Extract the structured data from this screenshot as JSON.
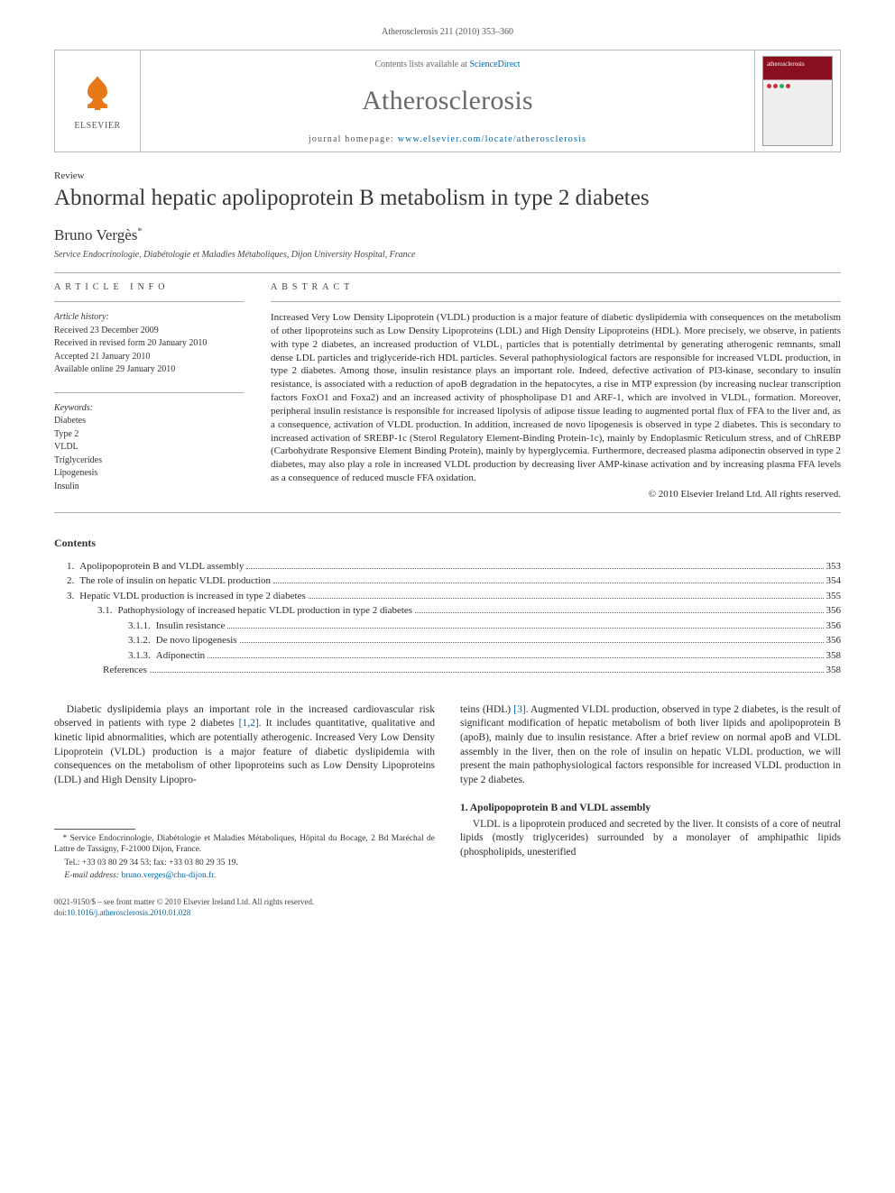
{
  "running_head": "Atherosclerosis 211 (2010) 353–360",
  "header": {
    "publisher": "ELSEVIER",
    "contents_prefix": "Contents lists available at ",
    "contents_link": "ScienceDirect",
    "journal_name": "Atherosclerosis",
    "homepage_prefix": "journal homepage: ",
    "homepage_url": "www.elsevier.com/locate/atherosclerosis",
    "cover_title": "atherosclerosis"
  },
  "article": {
    "type": "Review",
    "title": "Abnormal hepatic apolipoprotein B metabolism in type 2 diabetes",
    "author": "Bruno Vergès",
    "author_marker": "*",
    "affiliation": "Service Endocrinologie, Diabétologie et Maladies Métaboliques, Dijon University Hospital, France"
  },
  "info": {
    "heading": "article info",
    "history_label": "Article history:",
    "history": [
      "Received 23 December 2009",
      "Received in revised form 20 January 2010",
      "Accepted 21 January 2010",
      "Available online 29 January 2010"
    ],
    "keywords_label": "Keywords:",
    "keywords": [
      "Diabetes",
      "Type 2",
      "VLDL",
      "Triglycerides",
      "Lipogenesis",
      "Insulin"
    ]
  },
  "abstract": {
    "heading": "abstract",
    "text": "Increased Very Low Density Lipoprotein (VLDL) production is a major feature of diabetic dyslipidemia with consequences on the metabolism of other lipoproteins such as Low Density Lipoproteins (LDL) and High Density Lipoproteins (HDL). More precisely, we observe, in patients with type 2 diabetes, an increased production of VLDL₁ particles that is potentially detrimental by generating atherogenic remnants, small dense LDL particles and triglyceride-rich HDL particles. Several pathophysiological factors are responsible for increased VLDL production, in type 2 diabetes. Among those, insulin resistance plays an important role. Indeed, defective activation of PI3-kinase, secondary to insulin resistance, is associated with a reduction of apoB degradation in the hepatocytes, a rise in MTP expression (by increasing nuclear transcription factors FoxO1 and Foxa2) and an increased activity of phospholipase D1 and ARF-1, which are involved in VLDL₁ formation. Moreover, peripheral insulin resistance is responsible for increased lipolysis of adipose tissue leading to augmented portal flux of FFA to the liver and, as a consequence, activation of VLDL production. In addition, increased de novo lipogenesis is observed in type 2 diabetes. This is secondary to increased activation of SREBP-1c (Sterol Regulatory Element-Binding Protein-1c), mainly by Endoplasmic Reticulum stress, and of ChREBP (Carbohydrate Responsive Element Binding Protein), mainly by hyperglycemia. Furthermore, decreased plasma adiponectin observed in type 2 diabetes, may also play a role in increased VLDL production by decreasing liver AMP-kinase activation and by increasing plasma FFA levels as a consequence of reduced muscle FFA oxidation.",
    "copyright": "© 2010 Elsevier Ireland Ltd. All rights reserved."
  },
  "toc": {
    "title": "Contents",
    "items": [
      {
        "num": "1.",
        "label": "Apolipopoprotein B and VLDL assembly",
        "page": "353",
        "indent": 0
      },
      {
        "num": "2.",
        "label": "The role of insulin on hepatic VLDL production",
        "page": "354",
        "indent": 0
      },
      {
        "num": "3.",
        "label": "Hepatic VLDL production is increased in type 2 diabetes",
        "page": "355",
        "indent": 0
      },
      {
        "num": "3.1.",
        "label": "Pathophysiology of increased hepatic VLDL production in type 2 diabetes",
        "page": "356",
        "indent": 1
      },
      {
        "num": "3.1.1.",
        "label": "Insulin resistance",
        "page": "356",
        "indent": 2
      },
      {
        "num": "3.1.2.",
        "label": "De novo lipogenesis",
        "page": "356",
        "indent": 2
      },
      {
        "num": "3.1.3.",
        "label": "Adiponectin",
        "page": "358",
        "indent": 2
      },
      {
        "num": "",
        "label": "References",
        "page": "358",
        "indent": 1
      }
    ]
  },
  "body": {
    "para1_a": "Diabetic dyslipidemia plays an important role in the increased cardiovascular risk observed in patients with type 2 diabetes ",
    "para1_link1": "[1,2]",
    "para1_b": ". It includes quantitative, qualitative and kinetic lipid abnormalities, which are potentially atherogenic. Increased Very Low Density Lipoprotein (VLDL) production is a major feature of diabetic dyslipidemia with consequences on the metabolism of other lipoproteins such as Low Density Lipoproteins (LDL) and High Density Lipopro-",
    "para2_a": "teins (HDL) ",
    "para2_link1": "[3]",
    "para2_b": ". Augmented VLDL production, observed in type 2 diabetes, is the result of significant modification of hepatic metabolism of both liver lipids and apolipoprotein B (apoB), mainly due to insulin resistance. After a brief review on normal apoB and VLDL assembly in the liver, then on the role of insulin on hepatic VLDL production, we will present the main pathophysiological factors responsible for increased VLDL production in type 2 diabetes.",
    "sec1_heading": "1.  Apolipopoprotein B and VLDL assembly",
    "sec1_p1": "VLDL is a lipoprotein produced and secreted by the liver. It consists of a core of neutral lipids (mostly triglycerides) surrounded by a monolayer of amphipathic lipids (phospholipids, unesterified"
  },
  "footnotes": {
    "corr": "* Service Endocrinologie, Diabétologie et Maladies Métaboliques, Hôpital du Bocage, 2 Bd Maréchal de Lattre de Tassigny, F-21000 Dijon, France.",
    "tel": "Tel.: +33 03 80 29 34 53; fax: +33 03 80 29 35 19.",
    "email_label": "E-mail address: ",
    "email": "bruno.verges@chu-dijon.fr",
    "email_suffix": "."
  },
  "footer": {
    "line1": "0021-9150/$ – see front matter © 2010 Elsevier Ireland Ltd. All rights reserved.",
    "doi_prefix": "doi:",
    "doi": "10.1016/j.atherosclerosis.2010.01.028"
  }
}
